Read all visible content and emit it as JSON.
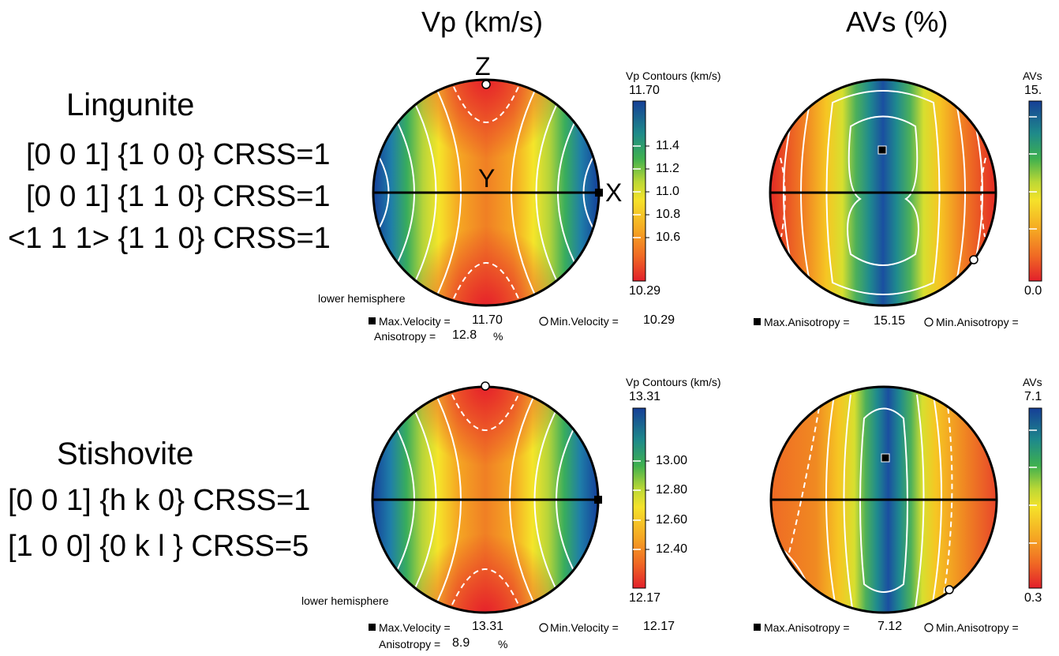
{
  "columns": {
    "vp_title": "Vp (km/s)",
    "avs_title": "AVs (%)"
  },
  "axes": {
    "z": "Z",
    "y": "Y",
    "x": "X"
  },
  "rows": [
    {
      "mineral": "Lingunite",
      "slip_systems": [
        "[0 0 1]  {1 0 0} CRSS=1",
        "[0 0 1]  {1 1 0} CRSS=1",
        "<1 1 1> {1 1 0} CRSS=1"
      ],
      "vp": {
        "colorbar_title": "Vp  Contours (km/s)",
        "max": "11.70",
        "min": "10.29",
        "ticks": [
          "11.4",
          "11.2",
          "11.0",
          "10.8",
          "10.6"
        ],
        "hemisphere": "lower hemisphere",
        "max_label": "Max.Velocity =",
        "max_value": "11.70",
        "min_label": "Min.Velocity =",
        "min_value": "10.29",
        "anis_label": "Anisotropy =",
        "anis_value": "12.8",
        "anis_unit": "%"
      },
      "avs": {
        "colorbar_title": "AVs",
        "max": "15.",
        "min": "0.0",
        "max_label": "Max.Anisotropy =",
        "max_value": "15.15",
        "min_label": "Min.Anisotropy ="
      }
    },
    {
      "mineral": "Stishovite",
      "slip_systems": [
        "[0 0 1]  {h k 0} CRSS=1",
        "[1 0 0]  {0 k l } CRSS=5"
      ],
      "vp": {
        "colorbar_title": "Vp  Contours (km/s)",
        "max": "13.31",
        "min": "12.17",
        "ticks": [
          "13.00",
          "12.80",
          "12.60",
          "12.40"
        ],
        "hemisphere": "lower hemisphere",
        "max_label": "Max.Velocity =",
        "max_value": "13.31",
        "min_label": "Min.Velocity =",
        "min_value": "12.17",
        "anis_label": "Anisotropy =",
        "anis_value": "8.9",
        "anis_unit": "%"
      },
      "avs": {
        "colorbar_title": "AVs",
        "max": "7.1",
        "min": "0.3",
        "max_label": "Max.Anisotropy =",
        "max_value": "7.12",
        "min_label": "Min.Anisotropy ="
      }
    }
  ],
  "colors": {
    "high": "#1a3f99",
    "mid_high": "#23a06a",
    "mid": "#f2e82a",
    "mid_low": "#f49a1e",
    "low": "#e8272a",
    "outline": "#000000",
    "contour": "#ffffff"
  }
}
